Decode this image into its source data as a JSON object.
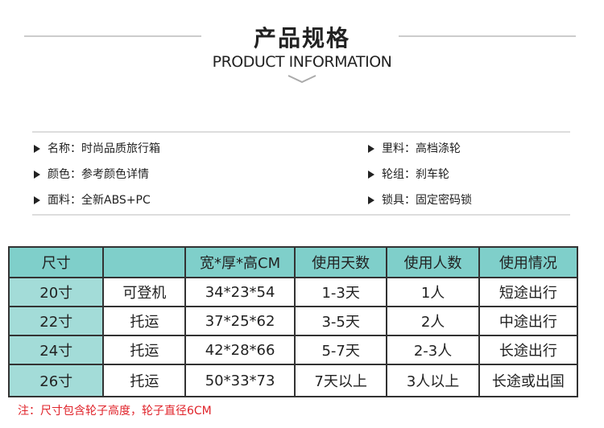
{
  "header": {
    "title": "产品规格",
    "subtitle": "PRODUCT INFORMATION"
  },
  "specs": [
    [
      "名称：时尚品质旅行箱",
      "里料：高档涤轮"
    ],
    [
      "颜色：参考颜色详情",
      "轮组：刹车轮"
    ],
    [
      "面料：全新ABS+PC",
      "锁具：固定密码锁"
    ]
  ],
  "table": {
    "header": [
      "尺寸",
      null,
      "宽*厚*高CM",
      "使用天数",
      "使用人数",
      "使用情况"
    ],
    "rows": [
      [
        "20寸",
        "可登机",
        "34*23*54",
        "1-3天",
        "1人",
        "短途出行"
      ],
      [
        "22寸",
        "托运",
        "37*25*62",
        "3-5天",
        "2人",
        "中途出行"
      ],
      [
        "24寸",
        "托运",
        "42*28*66",
        "5-7天",
        "2-3人",
        "长途出行"
      ],
      [
        "26寸",
        "托运",
        "50*33*73",
        "7天以上",
        "3人以上",
        "长途或出国"
      ]
    ]
  },
  "note": "注：尺寸包含轮子高度，轮子直径6CM"
}
